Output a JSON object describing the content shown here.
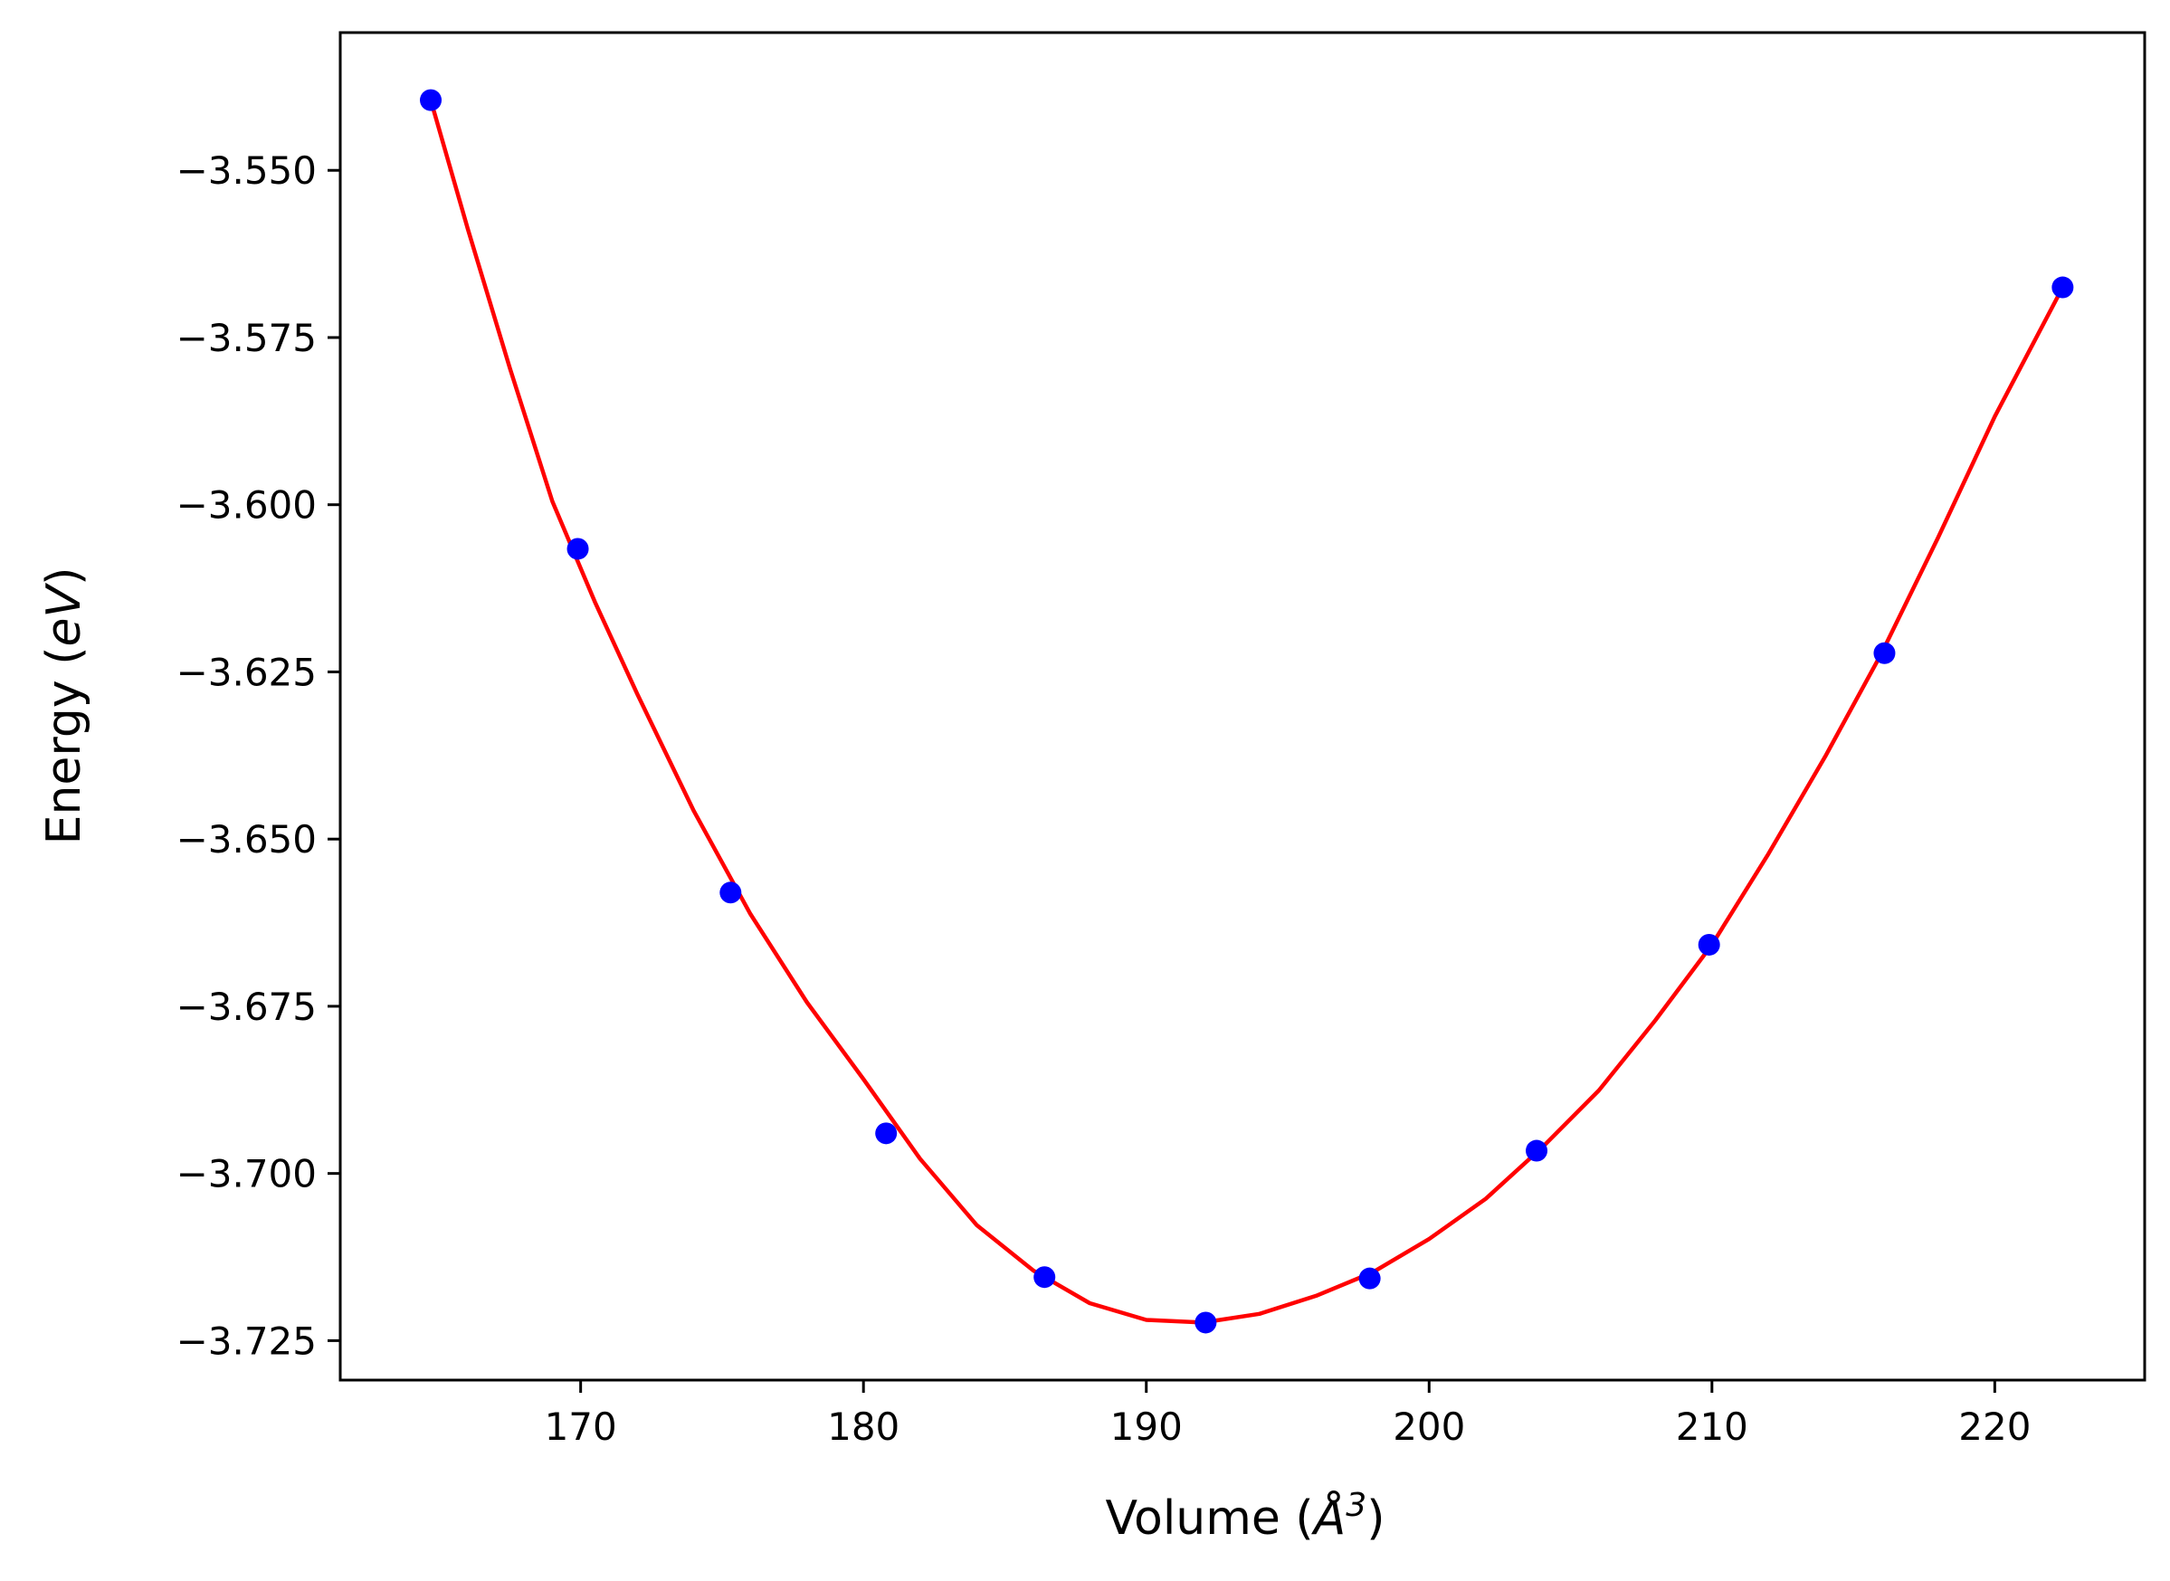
{
  "chart_data": {
    "type": "scatter",
    "title": "",
    "xlabel_parts": {
      "prefix": "Volume (",
      "symbol": "Å",
      "sup": "3",
      "suffix": ")"
    },
    "ylabel_parts": {
      "prefix": "Energy (",
      "unit": "eV",
      "suffix": ")"
    },
    "xlim": [
      161.5,
      225.3
    ],
    "ylim": [
      -3.7309,
      -3.5294
    ],
    "xticks": [
      170,
      180,
      190,
      200,
      210,
      220
    ],
    "xtick_labels": [
      "170",
      "180",
      "190",
      "200",
      "210",
      "220"
    ],
    "yticks": [
      -3.55,
      -3.575,
      -3.6,
      -3.625,
      -3.65,
      -3.675,
      -3.7,
      -3.725
    ],
    "ytick_labels": [
      "−3.550",
      "−3.575",
      "−3.600",
      "−3.625",
      "−3.650",
      "−3.675",
      "−3.700",
      "−3.725"
    ],
    "grid": false,
    "legend": "none",
    "series": [
      {
        "type": "scatter",
        "color": "#0000ff",
        "x": [
          164.7,
          169.9,
          175.3,
          180.8,
          186.4,
          192.1,
          197.9,
          203.8,
          209.9,
          216.1,
          222.4
        ],
        "y": [
          -3.5395,
          -3.6066,
          -3.658,
          -3.694,
          -3.7155,
          -3.7223,
          -3.7157,
          -3.6966,
          -3.6658,
          -3.6222,
          -3.5675
        ]
      },
      {
        "type": "line",
        "color": "#ff0000",
        "x": [
          164.7,
          166.0,
          167.5,
          169.0,
          170.5,
          172.0,
          174.0,
          176.0,
          178.0,
          180.0,
          182.0,
          184.0,
          186.0,
          188.0,
          190.0,
          192.0,
          194.0,
          196.0,
          198.0,
          200.0,
          202.0,
          204.0,
          206.0,
          208.0,
          210.0,
          212.0,
          214.0,
          216.0,
          218.0,
          220.0,
          222.4
        ],
        "y": [
          -3.5395,
          -3.5586,
          -3.5796,
          -3.5995,
          -3.6145,
          -3.6283,
          -3.6458,
          -3.6612,
          -3.6744,
          -3.6859,
          -3.6978,
          -3.7077,
          -3.7145,
          -3.7194,
          -3.7219,
          -3.7223,
          -3.721,
          -3.7183,
          -3.7148,
          -3.7098,
          -3.7038,
          -3.6961,
          -3.6876,
          -3.6771,
          -3.6658,
          -3.6522,
          -3.6377,
          -3.6222,
          -3.6049,
          -3.5868,
          -3.5675
        ]
      }
    ]
  }
}
